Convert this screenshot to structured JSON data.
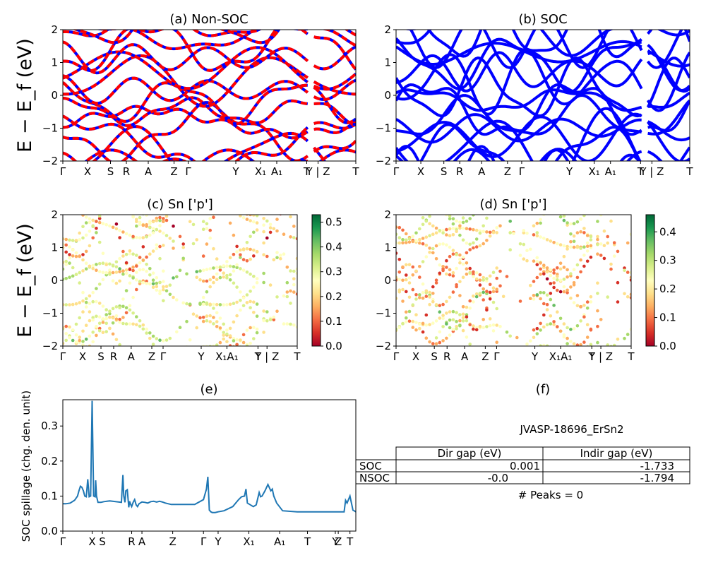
{
  "chart_data": [
    {
      "id": "a",
      "type": "line",
      "title": "(a) Non-SOC",
      "ylabel": "E − E_f (eV)",
      "ylim": [
        -2,
        2
      ],
      "yticks": [
        "2",
        "1",
        "0",
        "−1",
        "−2"
      ],
      "kpath": [
        "Γ",
        "X",
        "S",
        "R",
        "A",
        "Z",
        "Γ",
        "Y",
        "X₁",
        "A₁",
        "T",
        "Y | Z",
        "T"
      ],
      "series": [
        {
          "color": "#0000ff",
          "style": "solid"
        },
        {
          "color": "#ff0000",
          "style": "dashed"
        }
      ]
    },
    {
      "id": "b",
      "type": "line",
      "title": "(b) SOC",
      "ylim": [
        -2,
        2
      ],
      "yticks": [
        "2",
        "1",
        "0",
        "−1",
        "−2"
      ],
      "kpath": [
        "Γ",
        "X",
        "S",
        "R",
        "A",
        "Z",
        "Γ",
        "Y",
        "X₁",
        "A₁",
        "T",
        "Y | Z",
        "T"
      ],
      "series": [
        {
          "color": "#0000ff",
          "style": "solid"
        }
      ]
    },
    {
      "id": "c",
      "type": "scatter",
      "title": "(c)  Sn ['p']",
      "ylabel": "E − E_f (eV)",
      "ylim": [
        -2,
        2
      ],
      "yticks": [
        "2",
        "1",
        "0",
        "−1",
        "−2"
      ],
      "kpath": [
        "Γ",
        "X",
        "S",
        "R",
        "A",
        "Z",
        "Γ",
        "Y",
        "X₁A₁",
        "T",
        "Y | Z",
        "T"
      ],
      "colorbar": {
        "colormap": "RdYlGn",
        "range": [
          0.0,
          0.53
        ],
        "ticks": [
          "0.0",
          "0.1",
          "0.2",
          "0.3",
          "0.4",
          "0.5"
        ]
      }
    },
    {
      "id": "d",
      "type": "scatter",
      "title": "(d) Sn ['p']",
      "ylim": [
        -2,
        2
      ],
      "yticks": [
        "2",
        "1",
        "0",
        "−1",
        "−2"
      ],
      "kpath": [
        "Γ",
        "X",
        "S",
        "R",
        "A",
        "Z",
        "Γ",
        "Y",
        "X₁A₁",
        "T",
        "Y | Z",
        "T"
      ],
      "colorbar": {
        "colormap": "RdYlGn",
        "range": [
          0.0,
          0.46
        ],
        "ticks": [
          "0.0",
          "0.1",
          "0.2",
          "0.3",
          "0.4"
        ]
      }
    },
    {
      "id": "e",
      "type": "line",
      "title": "(e)",
      "ylabel": "SOC spillage (chg. den. unit)",
      "ylim": [
        0.0,
        0.375
      ],
      "yticks": [
        "0.3",
        "0.2",
        "0.1",
        "0.0"
      ],
      "xticks": [
        "Γ",
        "X",
        "S",
        "R",
        "A",
        "Z",
        "Γ",
        "Y",
        "X₁",
        "A₁",
        "T",
        "Y",
        "Z",
        "T"
      ],
      "series": [
        {
          "color": "#1f77b4",
          "x": [
            0,
            0.01,
            0.025,
            0.04,
            0.05,
            0.055,
            0.06,
            0.065,
            0.07,
            0.075,
            0.08,
            0.085,
            0.09,
            0.095,
            0.1,
            0.105,
            0.11,
            0.112,
            0.115,
            0.12,
            0.125,
            0.13,
            0.135,
            0.14,
            0.15,
            0.16,
            0.17,
            0.18,
            0.19,
            0.2,
            0.205,
            0.208,
            0.212,
            0.215,
            0.22,
            0.225,
            0.228,
            0.232,
            0.235,
            0.24,
            0.245,
            0.25,
            0.255,
            0.26,
            0.27,
            0.28,
            0.29,
            0.3,
            0.31,
            0.32,
            0.33,
            0.34,
            0.35,
            0.36,
            0.37,
            0.38,
            0.39,
            0.4,
            0.45,
            0.48,
            0.49,
            0.495,
            0.5,
            0.505,
            0.51,
            0.52,
            0.53,
            0.55,
            0.58,
            0.6,
            0.61,
            0.62,
            0.625,
            0.63,
            0.64,
            0.65,
            0.66,
            0.67,
            0.675,
            0.68,
            0.69,
            0.7,
            0.71,
            0.715,
            0.72,
            0.73,
            0.75,
            0.8,
            0.85,
            0.9,
            0.93,
            0.94,
            0.95,
            0.96,
            0.965,
            0.97,
            0.98,
            0.99,
            1.0
          ],
          "y": [
            0.078,
            0.078,
            0.08,
            0.088,
            0.1,
            0.115,
            0.128,
            0.125,
            0.115,
            0.1,
            0.098,
            0.148,
            0.098,
            0.1,
            0.372,
            0.1,
            0.098,
            0.145,
            0.1,
            0.082,
            0.082,
            0.082,
            0.083,
            0.084,
            0.085,
            0.086,
            0.085,
            0.084,
            0.083,
            0.082,
            0.16,
            0.1,
            0.082,
            0.115,
            0.118,
            0.068,
            0.085,
            0.075,
            0.07,
            0.082,
            0.09,
            0.075,
            0.07,
            0.078,
            0.083,
            0.082,
            0.08,
            0.084,
            0.085,
            0.083,
            0.085,
            0.083,
            0.08,
            0.078,
            0.076,
            0.076,
            0.076,
            0.076,
            0.076,
            0.09,
            0.12,
            0.155,
            0.06,
            0.055,
            0.053,
            0.053,
            0.055,
            0.058,
            0.07,
            0.09,
            0.098,
            0.1,
            0.12,
            0.08,
            0.075,
            0.07,
            0.075,
            0.11,
            0.098,
            0.1,
            0.115,
            0.133,
            0.115,
            0.12,
            0.1,
            0.08,
            0.058,
            0.055,
            0.055,
            0.055,
            0.055,
            0.055,
            0.055,
            0.055,
            0.088,
            0.08,
            0.1,
            0.06,
            0.055
          ]
        }
      ]
    }
  ],
  "panel_f": {
    "title": "(f)",
    "material": "JVASP-18696_ErSn2",
    "columns": [
      "Dir gap (eV)",
      "Indir gap (eV)"
    ],
    "rows": [
      {
        "label": "SOC",
        "dir": "0.001",
        "indir": "-1.733"
      },
      {
        "label": "NSOC",
        "dir": "-0.0",
        "indir": "-1.794"
      }
    ],
    "peaks": "# Peaks = 0"
  }
}
